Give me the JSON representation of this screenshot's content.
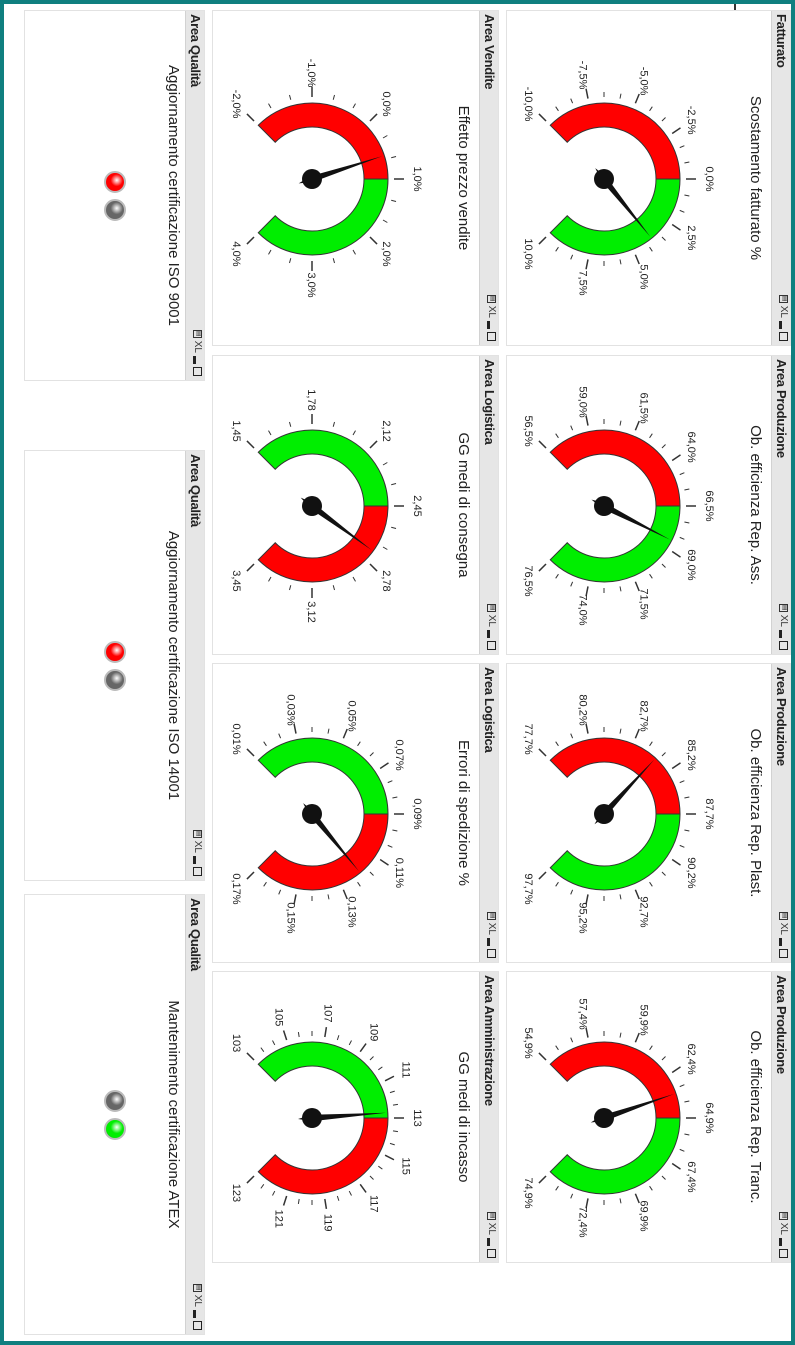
{
  "controls": {
    "xl": "XL"
  },
  "colors": {
    "red": "#ff0000",
    "green": "#00ee00",
    "frame": "#0f7f7f",
    "light_off": "#666666"
  },
  "gauges": [
    {
      "area": "Fatturato",
      "title": "Scostamento fatturato %",
      "labels": [
        "-10,0%",
        "-7,5%",
        "-5,0%",
        "-2,5%",
        "0,0%",
        "2,5%",
        "5,0%",
        "7,5%",
        "10,0%"
      ],
      "value": 3.8,
      "min": -10,
      "max": 10,
      "left": "red",
      "right": "green"
    },
    {
      "area": "Area Produzione",
      "title": "Ob. efficienza Rep. Ass.",
      "labels": [
        "56,5%",
        "59,0%",
        "61,5%",
        "64,0%",
        "66,5%",
        "69,0%",
        "71,5%",
        "74,0%",
        "76,5%"
      ],
      "value": 68.5,
      "min": 56.5,
      "max": 76.5,
      "left": "red",
      "right": "green"
    },
    {
      "area": "Area Produzione",
      "title": "Ob. efficienza Rep. Plast.",
      "labels": [
        "77,7%",
        "80,2%",
        "82,7%",
        "85,2%",
        "87,7%",
        "90,2%",
        "92,7%",
        "95,2%",
        "97,7%"
      ],
      "value": 84.2,
      "min": 77.7,
      "max": 97.7,
      "left": "red",
      "right": "green"
    },
    {
      "area": "Area Produzione",
      "title": "Ob. efficienza Rep. Tranc.",
      "labels": [
        "54,9%",
        "57,4%",
        "59,9%",
        "62,4%",
        "64,9%",
        "67,4%",
        "69,9%",
        "72,4%",
        "74,9%"
      ],
      "value": 63.5,
      "min": 54.9,
      "max": 74.9,
      "left": "red",
      "right": "green"
    },
    {
      "area": "Area Vendite",
      "title": "Effetto prezzo vendite",
      "labels": [
        "-2,0%",
        "-1,0%",
        "0,0%",
        "1,0%",
        "2,0%",
        "3,0%",
        "4,0%"
      ],
      "value": 0.6,
      "min": -2,
      "max": 4,
      "left": "red",
      "right": "green"
    },
    {
      "area": "Area Logistica",
      "title": "GG medi di consegna",
      "labels": [
        "1,45",
        "1,78",
        "2,12",
        "2,45",
        "2,78",
        "3,12",
        "3,45"
      ],
      "value": 2.72,
      "min": 1.45,
      "max": 3.45,
      "left": "green",
      "right": "red"
    },
    {
      "area": "Area Logistica",
      "title": "Errori di spedizione %",
      "labels": [
        "0,01%",
        "0,03%",
        "0,05%",
        "0,07%",
        "0,09%",
        "0,11%",
        "0,13%",
        "0,15%",
        "0,17%"
      ],
      "value": 0.12,
      "min": 0.01,
      "max": 0.17,
      "left": "green",
      "right": "red"
    },
    {
      "area": "Area Amministrazione",
      "title": "GG medi di incasso",
      "labels": [
        "103",
        "105",
        "107",
        "109",
        "111",
        "113",
        "115",
        "117",
        "119",
        "121",
        "123"
      ],
      "value": 112.7,
      "min": 103,
      "max": 123,
      "left": "green",
      "right": "red"
    }
  ],
  "quality": [
    {
      "area": "Area Qualità",
      "title": "Aggiornamento certificazione ISO 9001",
      "lights": [
        "red",
        "gray"
      ]
    },
    {
      "area": "Area Qualità",
      "title": "Aggiornamento certificazione ISO 14001",
      "lights": [
        "red",
        "gray"
      ]
    },
    {
      "area": "Area Qualità",
      "title": "Mantenimento certificazione ATEX",
      "lights": [
        "gray",
        "green"
      ]
    }
  ]
}
